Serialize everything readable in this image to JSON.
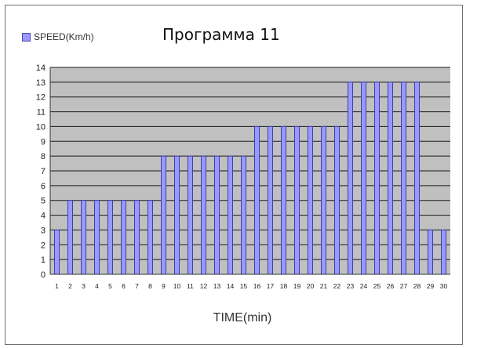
{
  "chart_data": {
    "type": "bar",
    "title": "Программа 11",
    "xlabel": "TIME(min)",
    "ylabel": "",
    "legend": {
      "label": "SPEED(Km/h)",
      "placement": "top-left"
    },
    "ylim": [
      0,
      14
    ],
    "yticks": [
      "0",
      "1",
      "2",
      "3",
      "4",
      "5",
      "6",
      "7",
      "8",
      "9",
      "10",
      "11",
      "12",
      "13",
      "14"
    ],
    "grid": true,
    "categories": [
      "1",
      "2",
      "3",
      "4",
      "5",
      "6",
      "7",
      "8",
      "9",
      "10",
      "11",
      "12",
      "13",
      "14",
      "15",
      "16",
      "17",
      "18",
      "19",
      "20",
      "21",
      "22",
      "23",
      "24",
      "25",
      "26",
      "27",
      "28",
      "29",
      "30"
    ],
    "series": [
      {
        "name": "SPEED(Km/h)",
        "values": [
          3,
          5,
          5,
          5,
          5,
          5,
          5,
          5,
          8,
          8,
          8,
          8,
          8,
          8,
          8,
          10,
          10,
          10,
          10,
          10,
          10,
          10,
          13,
          13,
          13,
          13,
          13,
          13,
          3,
          3
        ]
      }
    ],
    "colors": {
      "bar": "#9999ff",
      "bar_edge": "#3f3fa8",
      "plot_bg": "#c0c0c0",
      "grid": "#1a1a1a"
    }
  }
}
